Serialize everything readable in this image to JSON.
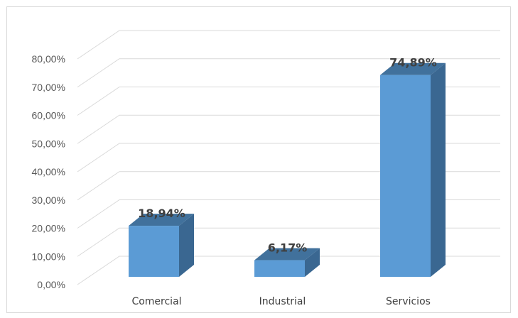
{
  "chart_data": {
    "type": "bar",
    "categories": [
      "Comercial",
      "Industrial",
      "Servicios"
    ],
    "values": [
      18.94,
      6.17,
      74.89
    ],
    "data_labels": [
      "18,94%",
      "6,17%",
      "74,89%"
    ],
    "y_ticks": [
      "0,00%",
      "10,00%",
      "20,00%",
      "30,00%",
      "40,00%",
      "50,00%",
      "60,00%",
      "70,00%",
      "80,00%"
    ],
    "ylim": [
      0,
      80
    ],
    "grid": true,
    "style": "3d-column",
    "colors": {
      "front": "#5b9bd5",
      "top": "#41719c",
      "side": "#3a6791",
      "grid": "#d9d9d9"
    }
  }
}
